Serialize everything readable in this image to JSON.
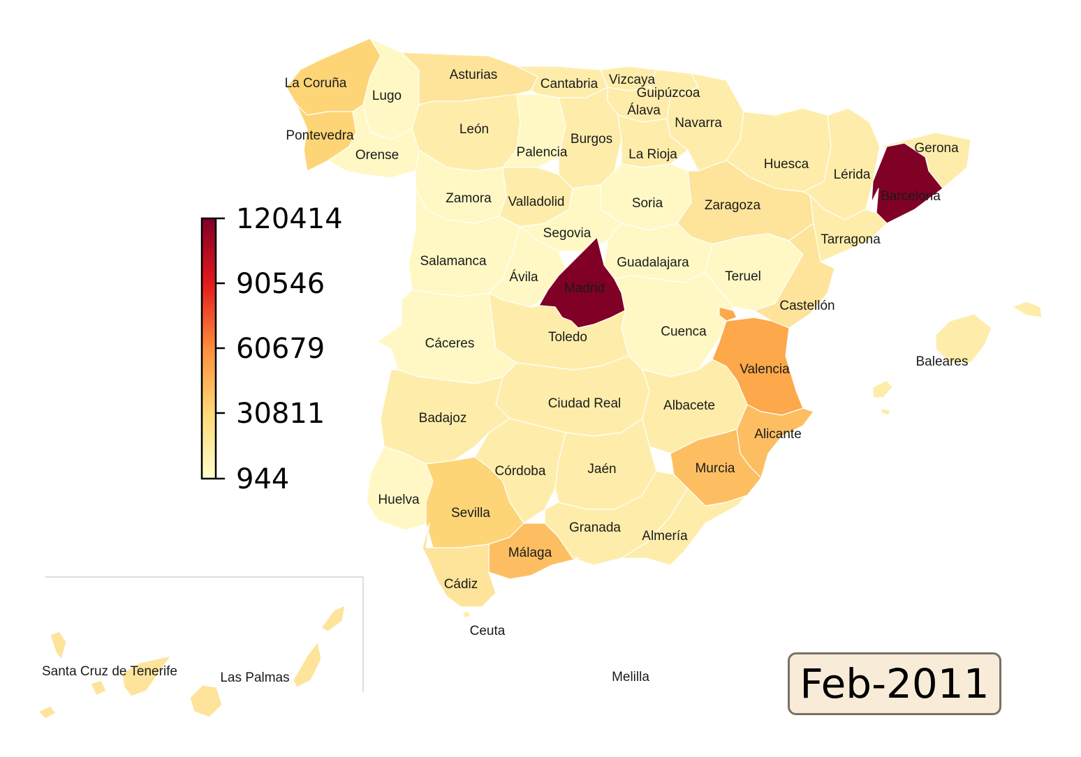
{
  "legend": {
    "ticks": [
      "120414",
      "90546",
      "60679",
      "30811",
      "944"
    ],
    "colors": [
      "#ffffcc",
      "#fed976",
      "#fd8d3c",
      "#e31a1c",
      "#800026"
    ]
  },
  "date_label": "Feb-2011",
  "colors": {
    "very_light": "#fff8c4",
    "light": "#feedaa",
    "pale_orange": "#fee39a",
    "mid": "#fdd577",
    "medium_orange": "#fdbe62",
    "orange": "#fda84a",
    "dark_red": "#800026",
    "inset_line": "#c8c8c8"
  },
  "provinces": [
    {
      "name": "La Coruña"
    },
    {
      "name": "Lugo"
    },
    {
      "name": "Asturias"
    },
    {
      "name": "Cantabria"
    },
    {
      "name": "Vizcaya"
    },
    {
      "name": "Guipúzcoa"
    },
    {
      "name": "Álava"
    },
    {
      "name": "Navarra"
    },
    {
      "name": "Pontevedra"
    },
    {
      "name": "Orense"
    },
    {
      "name": "León"
    },
    {
      "name": "Burgos"
    },
    {
      "name": "Palencia"
    },
    {
      "name": "La Rioja"
    },
    {
      "name": "Gerona"
    },
    {
      "name": "Huesca"
    },
    {
      "name": "Lérida"
    },
    {
      "name": "Barcelona"
    },
    {
      "name": "Zamora"
    },
    {
      "name": "Valladolid"
    },
    {
      "name": "Soria"
    },
    {
      "name": "Zaragoza"
    },
    {
      "name": "Segovia"
    },
    {
      "name": "Tarragona"
    },
    {
      "name": "Salamanca"
    },
    {
      "name": "Guadalajara"
    },
    {
      "name": "Ávila"
    },
    {
      "name": "Madrid"
    },
    {
      "name": "Teruel"
    },
    {
      "name": "Castellón"
    },
    {
      "name": "Cuenca"
    },
    {
      "name": "Toledo"
    },
    {
      "name": "Cáceres"
    },
    {
      "name": "Valencia"
    },
    {
      "name": "Baleares"
    },
    {
      "name": "Ciudad Real"
    },
    {
      "name": "Albacete"
    },
    {
      "name": "Badajoz"
    },
    {
      "name": "Alicante"
    },
    {
      "name": "Córdoba"
    },
    {
      "name": "Jaén"
    },
    {
      "name": "Murcia"
    },
    {
      "name": "Huelva"
    },
    {
      "name": "Sevilla"
    },
    {
      "name": "Granada"
    },
    {
      "name": "Almería"
    },
    {
      "name": "Málaga"
    },
    {
      "name": "Cádiz"
    },
    {
      "name": "Ceuta"
    },
    {
      "name": "Santa Cruz de Tenerife"
    },
    {
      "name": "Las Palmas"
    },
    {
      "name": "Melilla"
    }
  ]
}
